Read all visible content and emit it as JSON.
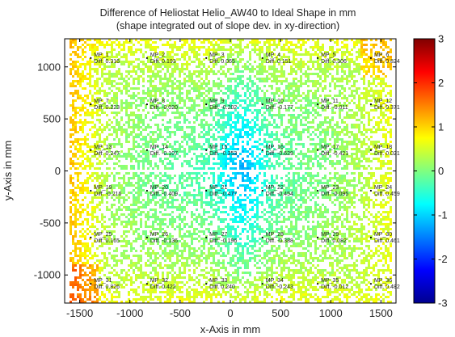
{
  "chart_data": {
    "type": "heatmap",
    "title": "Difference of Heliostat Helio_AW40 to Ideal Shape in mm",
    "subtitle": "(shape integrated out of slope dev. in xy-direction)",
    "xlabel": "x-Axis in mm",
    "ylabel": "y-Axis in mm",
    "xlim": [
      -1650,
      1650
    ],
    "ylim": [
      -1270,
      1270
    ],
    "xticks": [
      -1500,
      -1000,
      -500,
      0,
      500,
      1000,
      1500
    ],
    "xtick_labels": [
      "-1500",
      "-1000",
      "-500",
      "0",
      "500",
      "1000",
      "1500"
    ],
    "yticks": [
      -1000,
      -500,
      0,
      500,
      1000
    ],
    "ytick_labels": [
      "-1000",
      "-500",
      "0",
      "500",
      "1000"
    ],
    "colorbar": {
      "colormap": "jet",
      "range": [
        -3,
        3
      ],
      "ticks": [
        -3,
        -2,
        -1,
        0,
        1,
        2,
        3
      ],
      "tick_labels": [
        "-3",
        "-2",
        "-1",
        "0",
        "1",
        "2",
        "3"
      ]
    },
    "grid": false,
    "measurement_points": [
      {
        "name": "MP_1",
        "diff": "Diff. 0.316",
        "x": -1390,
        "y": 1085
      },
      {
        "name": "MP_2",
        "diff": "Diff. 0.193",
        "x": -830,
        "y": 1085
      },
      {
        "name": "MP_3",
        "diff": "Diff. 0.065",
        "x": -240,
        "y": 1085
      },
      {
        "name": "MP_4",
        "diff": "Diff. 0.151",
        "x": 320,
        "y": 1085
      },
      {
        "name": "MP_5",
        "diff": "Diff. 0.306",
        "x": 870,
        "y": 1085
      },
      {
        "name": "MP_6",
        "diff": "Diff. 0.824",
        "x": 1400,
        "y": 1085
      },
      {
        "name": "MP_7",
        "diff": "Diff. 0.223",
        "x": -1390,
        "y": 640
      },
      {
        "name": "MP_8",
        "diff": "Diff. -0.020",
        "x": -830,
        "y": 640
      },
      {
        "name": "MP_9",
        "diff": "Diff. -0.202",
        "x": -240,
        "y": 640
      },
      {
        "name": "MP_10",
        "diff": "Diff. -0.177",
        "x": 320,
        "y": 640
      },
      {
        "name": "MP_11",
        "diff": "Diff. -0.011",
        "x": 870,
        "y": 640
      },
      {
        "name": "MP_12",
        "diff": "Diff. 0.371",
        "x": 1400,
        "y": 640
      },
      {
        "name": "MP_13",
        "diff": "Diff. 0.247",
        "x": -1390,
        "y": 200
      },
      {
        "name": "MP_14",
        "diff": "Diff. -0.107",
        "x": -830,
        "y": 200
      },
      {
        "name": "MP_15",
        "diff": "Diff. -0.353",
        "x": -240,
        "y": 200
      },
      {
        "name": "MP_16",
        "diff": "Diff. -0.629",
        "x": 320,
        "y": 200
      },
      {
        "name": "MP_17",
        "diff": "Diff. -0.421",
        "x": 870,
        "y": 200
      },
      {
        "name": "MP_18",
        "diff": "Diff. 0.021",
        "x": 1400,
        "y": 200
      },
      {
        "name": "MP_19",
        "diff": "Diff. -0.216",
        "x": -1390,
        "y": -190
      },
      {
        "name": "MP_20",
        "diff": "Diff. -0.409",
        "x": -830,
        "y": -190
      },
      {
        "name": "MP_21",
        "diff": "Diff. -0.477",
        "x": -240,
        "y": -190
      },
      {
        "name": "MP_22",
        "diff": "Diff. -0.454",
        "x": 320,
        "y": -190
      },
      {
        "name": "MP_23",
        "diff": "Diff. -0.095",
        "x": 870,
        "y": -190
      },
      {
        "name": "MP_24",
        "diff": "Diff. 0.459",
        "x": 1400,
        "y": -190
      },
      {
        "name": "MP_25",
        "diff": "Diff. 0.165",
        "x": -1390,
        "y": -640
      },
      {
        "name": "MP_26",
        "diff": "Diff. -0.136",
        "x": -830,
        "y": -640
      },
      {
        "name": "MP_27",
        "diff": "Diff. -0.196",
        "x": -240,
        "y": -640
      },
      {
        "name": "MP_28",
        "diff": "Diff. -0.388",
        "x": 320,
        "y": -640
      },
      {
        "name": "MP_29",
        "diff": "Diff. 0.082",
        "x": 870,
        "y": -640
      },
      {
        "name": "MP_30",
        "diff": "Diff. 0.461",
        "x": 1400,
        "y": -640
      },
      {
        "name": "MP_31",
        "diff": "Diff. 0.826",
        "x": -1390,
        "y": -1085
      },
      {
        "name": "MP_32",
        "diff": "Diff. 0.422",
        "x": -830,
        "y": -1085
      },
      {
        "name": "MP_33",
        "diff": "Diff. 0.240",
        "x": -240,
        "y": -1085
      },
      {
        "name": "MP_34",
        "diff": "Diff. -0.243",
        "x": 320,
        "y": -1085
      },
      {
        "name": "MP_35",
        "diff": "Diff. -0.012",
        "x": 870,
        "y": -1085
      },
      {
        "name": "MP_36",
        "diff": "Diff. 0.482",
        "x": 1400,
        "y": -1085
      }
    ]
  }
}
